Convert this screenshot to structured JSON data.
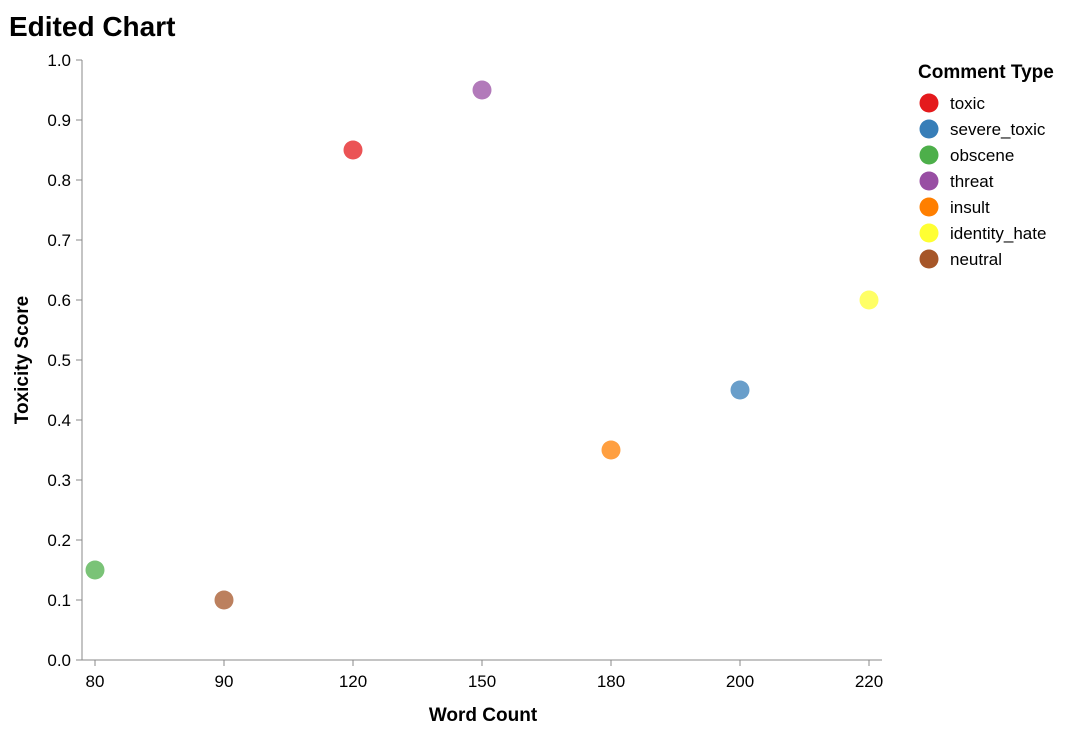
{
  "chart_data": {
    "type": "scatter",
    "title": "Edited Chart",
    "xlabel": "Word Count",
    "ylabel": "Toxicity Score",
    "x_ticks": [
      "80",
      "90",
      "120",
      "150",
      "180",
      "200",
      "220"
    ],
    "y_ticks": [
      "0.0",
      "0.1",
      "0.2",
      "0.3",
      "0.4",
      "0.5",
      "0.6",
      "0.7",
      "0.8",
      "0.9",
      "1.0"
    ],
    "ylim": [
      0,
      1
    ],
    "grid": false,
    "legend": {
      "title": "Comment Type",
      "placement": "top-right",
      "entries": [
        {
          "label": "toxic",
          "color": "#e41a1c"
        },
        {
          "label": "severe_toxic",
          "color": "#377eb8"
        },
        {
          "label": "obscene",
          "color": "#4daf4a"
        },
        {
          "label": "threat",
          "color": "#984ea3"
        },
        {
          "label": "insult",
          "color": "#ff7f00"
        },
        {
          "label": "identity_hate",
          "color": "#ffff33"
        },
        {
          "label": "neutral",
          "color": "#a65628"
        }
      ]
    },
    "points": [
      {
        "x": 120,
        "y": 0.85,
        "type": "toxic"
      },
      {
        "x": 200,
        "y": 0.45,
        "type": "severe_toxic"
      },
      {
        "x": 80,
        "y": 0.15,
        "type": "obscene"
      },
      {
        "x": 150,
        "y": 0.95,
        "type": "threat"
      },
      {
        "x": 180,
        "y": 0.35,
        "type": "insult"
      },
      {
        "x": 220,
        "y": 0.6,
        "type": "identity_hate"
      },
      {
        "x": 90,
        "y": 0.1,
        "type": "neutral"
      }
    ]
  }
}
